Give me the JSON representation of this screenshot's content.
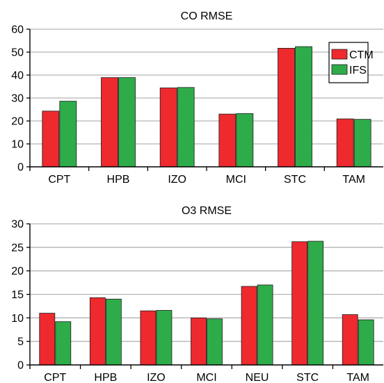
{
  "colors": {
    "CTM": "#ee2a2e",
    "IFS": "#2fac4a",
    "grid": "#b3b3b3",
    "axis": "#000000"
  },
  "chart_data": [
    {
      "type": "bar",
      "title": "CO RMSE",
      "categories": [
        "CPT",
        "HPB",
        "IZO",
        "MCI",
        "STC",
        "TAM"
      ],
      "series": [
        {
          "name": "CTM",
          "values": [
            24.3,
            38.9,
            34.4,
            23.0,
            51.7,
            20.9
          ]
        },
        {
          "name": "IFS",
          "values": [
            28.6,
            38.9,
            34.6,
            23.2,
            52.4,
            20.7
          ]
        }
      ],
      "ylim": [
        0,
        60
      ],
      "yticks": [
        0,
        10,
        20,
        30,
        40,
        50,
        60
      ],
      "xlabel": "",
      "ylabel": "",
      "grid": true,
      "legend": {
        "position": "top-right",
        "entries": [
          "CTM",
          "IFS"
        ]
      }
    },
    {
      "type": "bar",
      "title": "O3 RMSE",
      "categories": [
        "CPT",
        "HPB",
        "IZO",
        "MCI",
        "NEU",
        "STC",
        "TAM"
      ],
      "series": [
        {
          "name": "CTM",
          "values": [
            11.0,
            14.3,
            11.5,
            10.0,
            16.7,
            26.2,
            10.7
          ]
        },
        {
          "name": "IFS",
          "values": [
            9.2,
            14.0,
            11.6,
            9.8,
            17.0,
            26.3,
            9.6
          ]
        }
      ],
      "ylim": [
        0,
        30
      ],
      "yticks": [
        0,
        5,
        10,
        15,
        20,
        25,
        30
      ],
      "xlabel": "",
      "ylabel": "",
      "grid": true,
      "legend": null
    }
  ]
}
